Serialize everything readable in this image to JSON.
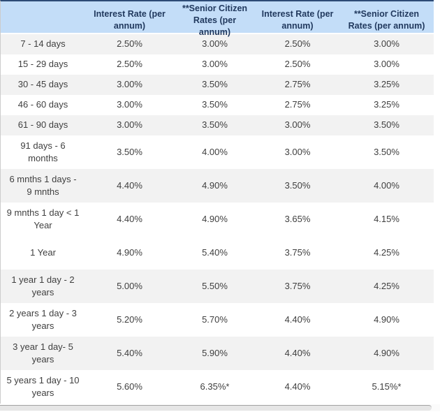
{
  "colors": {
    "accent_top_border": "#2d4b76",
    "header_background": "#c3ddf8",
    "header_text": "#21395e",
    "shaded_row_background": "#f2f2f2",
    "body_text": "#3f3f3f"
  },
  "table": {
    "columns": [
      "",
      "Interest Rate (per annum)",
      "**Senior Citizen Rates (per annum)",
      "Interest Rate (per annum)",
      "**Senior Citizen Rates (per annum)"
    ],
    "rows": [
      {
        "tenure": "7 - 14 days",
        "values": [
          "2.50%",
          "3.00%",
          "2.50%",
          "3.00%"
        ],
        "shaded": true
      },
      {
        "tenure": "15 - 29 days",
        "values": [
          "2.50%",
          "3.00%",
          "2.50%",
          "3.00%"
        ],
        "shaded": false
      },
      {
        "tenure": "30 - 45 days",
        "values": [
          "3.00%",
          "3.50%",
          "2.75%",
          "3.25%"
        ],
        "shaded": true
      },
      {
        "tenure": "46 - 60 days",
        "values": [
          "3.00%",
          "3.50%",
          "2.75%",
          "3.25%"
        ],
        "shaded": false
      },
      {
        "tenure": "61 - 90 days",
        "values": [
          "3.00%",
          "3.50%",
          "3.00%",
          "3.50%"
        ],
        "shaded": true
      },
      {
        "tenure": "91 days - 6 months",
        "values": [
          "3.50%",
          "4.00%",
          "3.00%",
          "3.50%"
        ],
        "shaded": false
      },
      {
        "tenure": "6 mnths 1 days - 9 mnths",
        "values": [
          "4.40%",
          "4.90%",
          "3.50%",
          "4.00%"
        ],
        "shaded": true
      },
      {
        "tenure": "9 mnths 1 day < 1 Year",
        "values": [
          "4.40%",
          "4.90%",
          "3.65%",
          "4.15%"
        ],
        "shaded": false
      },
      {
        "tenure": "1 Year",
        "values": [
          "4.90%",
          "5.40%",
          "3.75%",
          "4.25%"
        ],
        "shaded": false
      },
      {
        "tenure": "1 year 1 day - 2 years",
        "values": [
          "5.00%",
          "5.50%",
          "3.75%",
          "4.25%"
        ],
        "shaded": true
      },
      {
        "tenure": "2 years 1 day - 3 years",
        "values": [
          "5.20%",
          "5.70%",
          "4.40%",
          "4.90%"
        ],
        "shaded": false
      },
      {
        "tenure": "3 year 1 day- 5 years",
        "values": [
          "5.40%",
          "5.90%",
          "4.40%",
          "4.90%"
        ],
        "shaded": true
      },
      {
        "tenure": "5 years 1 day - 10 years",
        "values": [
          "5.60%",
          "6.35%*",
          "4.40%",
          "5.15%*"
        ],
        "shaded": false
      }
    ]
  }
}
